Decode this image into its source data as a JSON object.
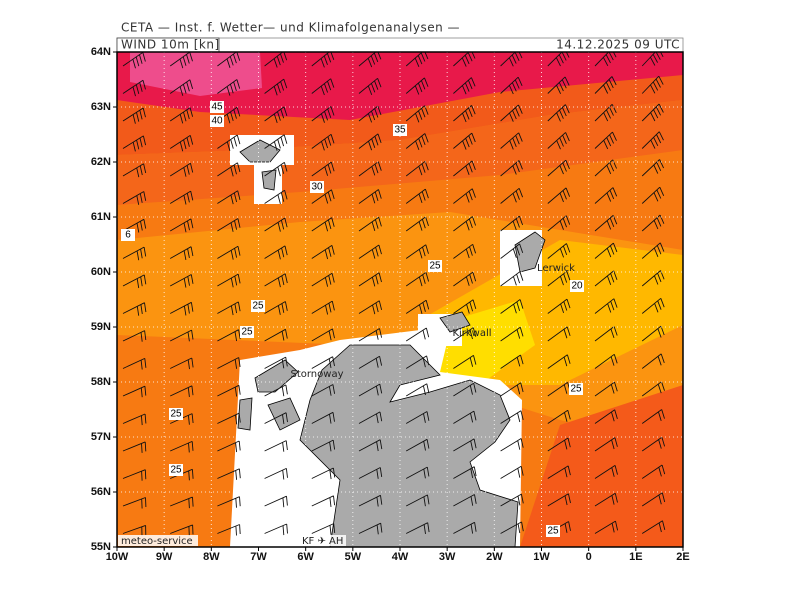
{
  "header": {
    "institute": "CETA — Inst. f. Wetter— und Klimafolgenanalysen —",
    "variable": "WIND 10m [kn]",
    "datetime": "14.12.2025 09 UTC"
  },
  "map": {
    "lat_labels": [
      "55N",
      "56N",
      "57N",
      "58N",
      "59N",
      "60N",
      "61N",
      "62N",
      "63N",
      "64N"
    ],
    "lon_labels": [
      "10W",
      "9W",
      "8W",
      "7W",
      "6W",
      "5W",
      "4W",
      "3W",
      "2W",
      "1W",
      "0",
      "1E",
      "2E"
    ],
    "contour_labels": [
      "45",
      "40",
      "35",
      "30",
      "25",
      "20",
      "25",
      "25",
      "25",
      "25",
      "25",
      "25",
      "6"
    ],
    "places": [
      "Lerwick",
      "Kirkwall",
      "Stornoway"
    ],
    "footer_left": "meteo-service",
    "footer_right": "KF ✈ AH"
  }
}
